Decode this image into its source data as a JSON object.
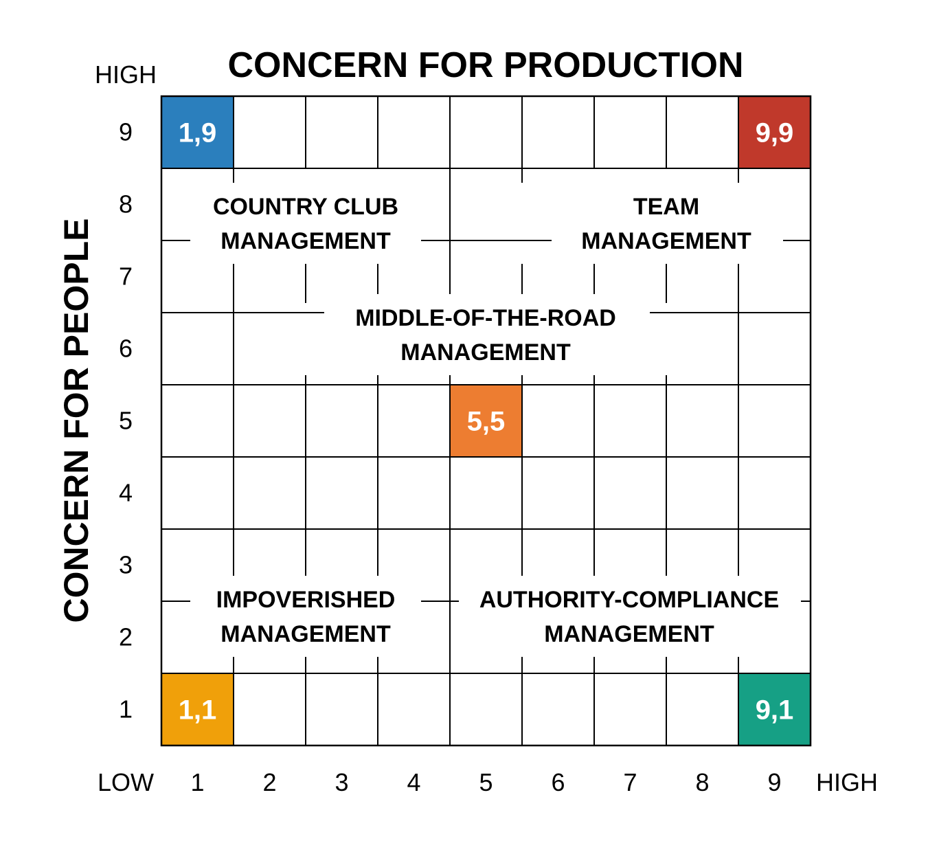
{
  "title": "CONCERN FOR PRODUCTION",
  "y_axis_title": "CONCERN FOR PEOPLE",
  "x_axis": {
    "low_label": "LOW",
    "high_label": "HIGH",
    "ticks": [
      "1",
      "2",
      "3",
      "4",
      "5",
      "6",
      "7",
      "8",
      "9"
    ]
  },
  "y_axis": {
    "high_label": "HIGH",
    "ticks": [
      "9",
      "8",
      "7",
      "6",
      "5",
      "4",
      "3",
      "2",
      "1"
    ]
  },
  "highlights": [
    {
      "label": "1,9",
      "production": 1,
      "people": 9,
      "color": "#2b7fbd"
    },
    {
      "label": "9,9",
      "production": 9,
      "people": 9,
      "color": "#c0392b"
    },
    {
      "label": "5,5",
      "production": 5,
      "people": 5,
      "color": "#ed7d31"
    },
    {
      "label": "1,1",
      "production": 1,
      "people": 1,
      "color": "#f0a00a"
    },
    {
      "label": "9,1",
      "production": 9,
      "people": 1,
      "color": "#16a085"
    }
  ],
  "styles": {
    "country_club": {
      "line1": "COUNTRY CLUB",
      "line2": "MANAGEMENT"
    },
    "team": {
      "line1": "TEAM",
      "line2": "MANAGEMENT"
    },
    "middle": {
      "line1": "MIDDLE-OF-THE-ROAD",
      "line2": "MANAGEMENT"
    },
    "impoverished": {
      "line1": "IMPOVERISHED",
      "line2": "MANAGEMENT"
    },
    "authority": {
      "line1": "AUTHORITY-COMPLIANCE",
      "line2": "MANAGEMENT"
    }
  }
}
